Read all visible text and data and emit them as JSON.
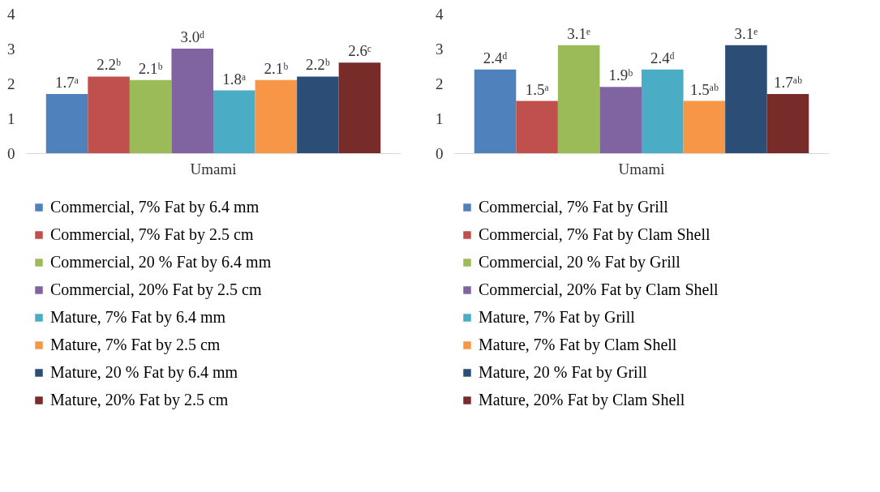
{
  "chart_data": [
    {
      "type": "bar",
      "categories": [
        "Umami"
      ],
      "ylim": [
        0,
        4
      ],
      "yticks": [
        0,
        1,
        2,
        3,
        4
      ],
      "grid": false,
      "legend": "bottom",
      "series": [
        {
          "name": "Commercial, 7% Fat by 6.4 mm",
          "color": "#4f81bd",
          "values": [
            1.7
          ],
          "value_labels": [
            "1.7ᵃ"
          ]
        },
        {
          "name": "Commercial, 7% Fat by 2.5 cm",
          "color": "#c0504d",
          "values": [
            2.2
          ],
          "value_labels": [
            "2.2ᵇ"
          ]
        },
        {
          "name": "Commercial, 20 % Fat by 6.4 mm",
          "color": "#9bbb59",
          "values": [
            2.1
          ],
          "value_labels": [
            "2.1ᵇ"
          ]
        },
        {
          "name": "Commercial, 20% Fat by 2.5 cm",
          "color": "#8064a2",
          "values": [
            3.0
          ],
          "value_labels": [
            "3.0ᵈ"
          ]
        },
        {
          "name": "Mature, 7% Fat by 6.4 mm",
          "color": "#4bacc6",
          "values": [
            1.8
          ],
          "value_labels": [
            "1.8ᵃ"
          ]
        },
        {
          "name": "Mature, 7% Fat by 2.5 cm",
          "color": "#f79646",
          "values": [
            2.1
          ],
          "value_labels": [
            "2.1ᵇ"
          ]
        },
        {
          "name": "Mature, 20 % Fat by 6.4 mm",
          "color": "#2c4d75",
          "values": [
            2.2
          ],
          "value_labels": [
            "2.2ᵇ"
          ]
        },
        {
          "name": "Mature, 20% Fat by 2.5 cm",
          "color": "#772c2a",
          "values": [
            2.6
          ],
          "value_labels": [
            "2.6ᶜ"
          ]
        }
      ]
    },
    {
      "type": "bar",
      "categories": [
        "Umami"
      ],
      "ylim": [
        0,
        4
      ],
      "yticks": [
        0,
        1,
        2,
        3,
        4
      ],
      "grid": false,
      "legend": "bottom",
      "series": [
        {
          "name": "Commercial, 7% Fat by Grill",
          "color": "#4f81bd",
          "values": [
            2.4
          ],
          "value_labels": [
            "2.4ᵈ"
          ]
        },
        {
          "name": "Commercial, 7% Fat by Clam Shell",
          "color": "#c0504d",
          "values": [
            1.5
          ],
          "value_labels": [
            "1.5ᵃ"
          ]
        },
        {
          "name": "Commercial, 20 % Fat by Grill",
          "color": "#9bbb59",
          "values": [
            3.1
          ],
          "value_labels": [
            "3.1ᵉ"
          ]
        },
        {
          "name": "Commercial, 20% Fat by Clam Shell",
          "color": "#8064a2",
          "values": [
            1.9
          ],
          "value_labels": [
            "1.9ᵇ"
          ]
        },
        {
          "name": "Mature, 7% Fat by Grill",
          "color": "#4bacc6",
          "values": [
            2.4
          ],
          "value_labels": [
            "2.4ᵈ"
          ]
        },
        {
          "name": "Mature, 7% Fat by Clam Shell",
          "color": "#f79646",
          "values": [
            1.5
          ],
          "value_labels": [
            "1.5ᵃᵇ"
          ]
        },
        {
          "name": "Mature, 20 % Fat by Grill",
          "color": "#2c4d75",
          "values": [
            3.1
          ],
          "value_labels": [
            "3.1ᵉ"
          ]
        },
        {
          "name": "Mature, 20% Fat by Clam Shell",
          "color": "#772c2a",
          "values": [
            1.7
          ],
          "value_labels": [
            "1.7ᵃᵇ"
          ]
        }
      ]
    }
  ]
}
